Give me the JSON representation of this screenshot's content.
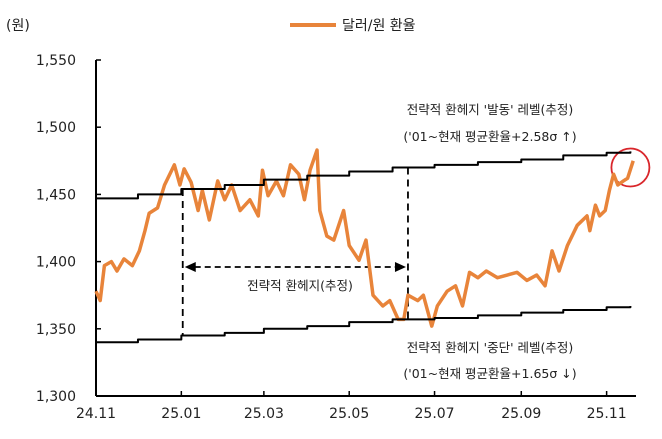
{
  "chart_data": {
    "type": "line",
    "unit_label": "(원)",
    "ylim": [
      1300,
      1550
    ],
    "yticks": [
      1300,
      1350,
      1400,
      1450,
      1500,
      1550
    ],
    "ytick_labels": [
      "1,300",
      "1,350",
      "1,400",
      "1,450",
      "1,500",
      "1,550"
    ],
    "xlim": [
      "2024-11-01",
      "2025-11-22"
    ],
    "xticks": [
      "2024-11-01",
      "2025-01-01",
      "2025-03-01",
      "2025-05-01",
      "2025-07-01",
      "2025-09-01",
      "2025-11-01"
    ],
    "xtick_labels": [
      "24.11",
      "25.01",
      "25.03",
      "25.05",
      "25.07",
      "25.09",
      "25.11"
    ],
    "grid": false,
    "legend_position": "top-center",
    "series": [
      {
        "name": "달러/원 환율",
        "color": "#E8843A",
        "x": [
          "2024-11-01",
          "2024-11-04",
          "2024-11-07",
          "2024-11-12",
          "2024-11-16",
          "2024-11-21",
          "2024-11-27",
          "2024-12-02",
          "2024-12-06",
          "2024-12-09",
          "2024-12-15",
          "2024-12-20",
          "2024-12-27",
          "2024-12-31",
          "2025-01-03",
          "2025-01-08",
          "2025-01-13",
          "2025-01-16",
          "2025-01-21",
          "2025-01-27",
          "2025-02-01",
          "2025-02-06",
          "2025-02-12",
          "2025-02-19",
          "2025-02-25",
          "2025-02-28",
          "2025-03-04",
          "2025-03-10",
          "2025-03-15",
          "2025-03-20",
          "2025-03-26",
          "2025-03-30",
          "2025-04-03",
          "2025-04-08",
          "2025-04-10",
          "2025-04-15",
          "2025-04-20",
          "2025-04-27",
          "2025-05-01",
          "2025-05-08",
          "2025-05-13",
          "2025-05-18",
          "2025-05-25",
          "2025-05-30",
          "2025-06-05",
          "2025-06-09",
          "2025-06-12",
          "2025-06-19",
          "2025-06-23",
          "2025-06-29",
          "2025-07-03",
          "2025-07-10",
          "2025-07-16",
          "2025-07-21",
          "2025-07-26",
          "2025-08-01",
          "2025-08-07",
          "2025-08-15",
          "2025-08-22",
          "2025-08-29",
          "2025-09-05",
          "2025-09-12",
          "2025-09-18",
          "2025-09-23",
          "2025-09-28",
          "2025-10-04",
          "2025-10-11",
          "2025-10-18",
          "2025-10-20",
          "2025-10-24",
          "2025-10-27",
          "2025-10-31",
          "2025-11-03",
          "2025-11-06",
          "2025-11-09",
          "2025-11-13",
          "2025-11-16",
          "2025-11-20"
        ],
        "y": [
          1378,
          1371,
          1397,
          1400,
          1393,
          1402,
          1397,
          1408,
          1423,
          1436,
          1440,
          1457,
          1472,
          1457,
          1469,
          1459,
          1438,
          1453,
          1431,
          1460,
          1446,
          1457,
          1438,
          1446,
          1434,
          1468,
          1449,
          1460,
          1449,
          1472,
          1465,
          1446,
          1468,
          1483,
          1438,
          1419,
          1416,
          1438,
          1412,
          1401,
          1416,
          1375,
          1367,
          1371,
          1357,
          1357,
          1375,
          1371,
          1375,
          1352,
          1367,
          1378,
          1382,
          1367,
          1392,
          1388,
          1393,
          1388,
          1390,
          1392,
          1386,
          1390,
          1382,
          1408,
          1393,
          1412,
          1427,
          1434,
          1423,
          1442,
          1434,
          1438,
          1453,
          1465,
          1457,
          1460,
          1462,
          1475
        ]
      },
      {
        "color": "#000000",
        "style": "step",
        "x": [
          "2024-11-01",
          "2024-12-01",
          "2025-01-01",
          "2025-02-01",
          "2025-03-01",
          "2025-04-01",
          "2025-05-01",
          "2025-06-01",
          "2025-07-01",
          "2025-08-01",
          "2025-09-01",
          "2025-10-01",
          "2025-11-01",
          "2025-11-18"
        ],
        "y": [
          1447,
          1450,
          1454,
          1457,
          1461,
          1464,
          1467,
          1470,
          1472,
          1474,
          1476,
          1479,
          1481,
          1482
        ]
      },
      {
        "color": "#000000",
        "style": "step",
        "x": [
          "2024-11-01",
          "2024-12-01",
          "2025-01-01",
          "2025-02-01",
          "2025-03-01",
          "2025-04-01",
          "2025-05-01",
          "2025-06-01",
          "2025-07-01",
          "2025-08-01",
          "2025-09-01",
          "2025-10-01",
          "2025-11-01",
          "2025-11-18"
        ],
        "y": [
          1340,
          1342,
          1345,
          1347,
          1350,
          1352,
          1355,
          1357,
          1358,
          1360,
          1362,
          1364,
          1366,
          1367
        ]
      }
    ],
    "annotations": {
      "upper_line_1": "전략적 환헤지 '발동' 레벨(추정)",
      "upper_line_2": "('01~현재 평균환율+2.58σ ↑)",
      "lower_line_1": "전략적 환헤지 '중단' 레벨(추정)",
      "lower_line_2": "('01~현재 평균환율+1.65σ ↓)",
      "period_label": "전략적 환헤지(추정)",
      "period_start": "2025-01-02",
      "period_end": "2025-06-12",
      "highlight_circle_date": "2025-11-18",
      "highlight_circle_value": 1470,
      "highlight_color": "#D9262B"
    }
  }
}
